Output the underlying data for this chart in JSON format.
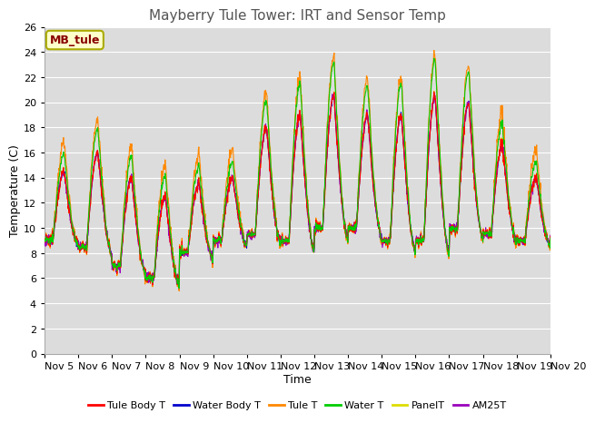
{
  "title": "Mayberry Tule Tower: IRT and Sensor Temp",
  "xlabel": "Time",
  "ylabel": "Temperature (C)",
  "ylim": [
    0,
    26
  ],
  "yticks": [
    0,
    2,
    4,
    6,
    8,
    10,
    12,
    14,
    16,
    18,
    20,
    22,
    24,
    26
  ],
  "xtick_labels": [
    "Nov 5",
    "Nov 6",
    "Nov 7",
    "Nov 8",
    "Nov 9",
    "Nov 10",
    "Nov 11",
    "Nov 12",
    "Nov 13",
    "Nov 14",
    "Nov 15",
    "Nov 16",
    "Nov 17",
    "Nov 18",
    "Nov 19",
    "Nov 20"
  ],
  "legend_label": "MB_tule",
  "series_colors": {
    "Tule Body T": "#ff0000",
    "Water Body T": "#0000cc",
    "Tule T": "#ff8800",
    "Water T": "#00cc00",
    "PanelT": "#dddd00",
    "AM25T": "#9900bb"
  },
  "figure_bg": "#ffffff",
  "plot_bg": "#dcdcdc",
  "grid_color": "#ffffff",
  "title_fontsize": 11,
  "axis_fontsize": 9,
  "tick_fontsize": 8,
  "legend_box_color": "#ffffcc",
  "legend_box_edge": "#aaaa00",
  "legend_text_color": "#880000"
}
